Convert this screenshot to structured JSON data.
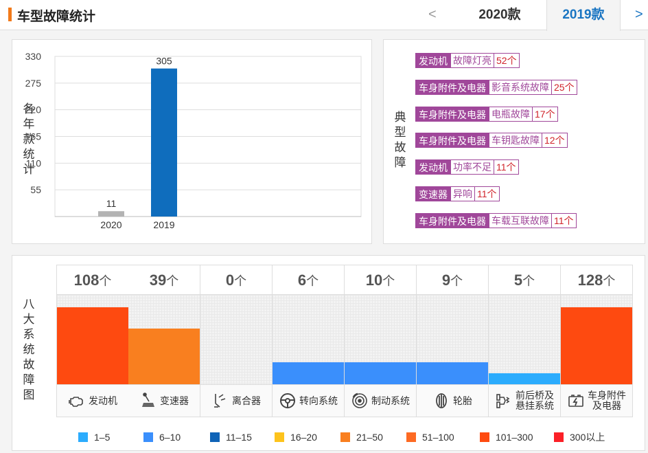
{
  "header": {
    "title": "车型故障统计",
    "prev": "<",
    "next": ">",
    "tabs": [
      {
        "label": "2020款",
        "active": false
      },
      {
        "label": "2019款",
        "active": true
      }
    ]
  },
  "year_panel": {
    "vertical_label": [
      "各",
      "年",
      "款",
      "统",
      "计"
    ]
  },
  "chart_data": {
    "type": "bar",
    "categories": [
      "2020",
      "2019"
    ],
    "values": [
      11,
      305
    ],
    "bar_colors": [
      "#b3b3b3",
      "#0f6dbd"
    ],
    "yticks": [
      55,
      110,
      165,
      220,
      275,
      330
    ],
    "ylim": [
      0,
      330
    ],
    "grid": true,
    "title": "",
    "xlabel": "",
    "ylabel": ""
  },
  "faults_panel": {
    "vertical_label": [
      "典",
      "型",
      "故",
      "障"
    ],
    "items": [
      {
        "category": "发动机",
        "fault": "故障灯亮",
        "count": "52个"
      },
      {
        "category": "车身附件及电器",
        "fault": "影音系统故障",
        "count": "25个"
      },
      {
        "category": "车身附件及电器",
        "fault": "电瓶故障",
        "count": "17个"
      },
      {
        "category": "车身附件及电器",
        "fault": "车钥匙故障",
        "count": "12个"
      },
      {
        "category": "发动机",
        "fault": "功率不足",
        "count": "11个"
      },
      {
        "category": "变速器",
        "fault": "异响",
        "count": "11个"
      },
      {
        "category": "车身附件及电器",
        "fault": "车载互联故障",
        "count": "11个"
      }
    ]
  },
  "systems_panel": {
    "vertical_label": [
      "八",
      "大",
      "系",
      "统",
      "故",
      "障",
      "图"
    ],
    "unit": "个",
    "systems": [
      {
        "name": "发动机",
        "count": 108,
        "icon": "engine-icon",
        "color": "#fe4a10",
        "fill": 0.86
      },
      {
        "name": "变速器",
        "count": 39,
        "icon": "gear-shift-icon",
        "color": "#f97f1f",
        "fill": 0.62
      },
      {
        "name": "离合器",
        "count": 0,
        "icon": "clutch-pedal-icon",
        "color": "#f3f3f3",
        "fill": 0
      },
      {
        "name": "转向系统",
        "count": 6,
        "icon": "steering-wheel-icon",
        "color": "#3a8ffc",
        "fill": 0.25
      },
      {
        "name": "制动系统",
        "count": 10,
        "icon": "brake-disc-icon",
        "color": "#3a8ffc",
        "fill": 0.25
      },
      {
        "name": "轮胎",
        "count": 9,
        "icon": "tire-icon",
        "color": "#3a8ffc",
        "fill": 0.25
      },
      {
        "name": "前后桥及悬挂系统",
        "name_lines": [
          "前后桥及",
          "悬挂系统"
        ],
        "count": 5,
        "icon": "suspension-icon",
        "color": "#2cacfd",
        "fill": 0.12
      },
      {
        "name": "车身附件及电器",
        "name_lines": [
          "车身附件",
          "及电器"
        ],
        "count": 128,
        "icon": "battery-icon",
        "color": "#fe4a10",
        "fill": 0.86
      }
    ],
    "legend": [
      {
        "label": "1–5",
        "color": "#2cacfd"
      },
      {
        "label": "6–10",
        "color": "#3a8ffc"
      },
      {
        "label": "11–15",
        "color": "#0f63b7"
      },
      {
        "label": "16–20",
        "color": "#fdc31c"
      },
      {
        "label": "21–50",
        "color": "#f97f1f"
      },
      {
        "label": "51–100",
        "color": "#fd6a23"
      },
      {
        "label": "101–300",
        "color": "#fe4a10"
      },
      {
        "label": "300以上",
        "color": "#fb2027"
      }
    ]
  }
}
